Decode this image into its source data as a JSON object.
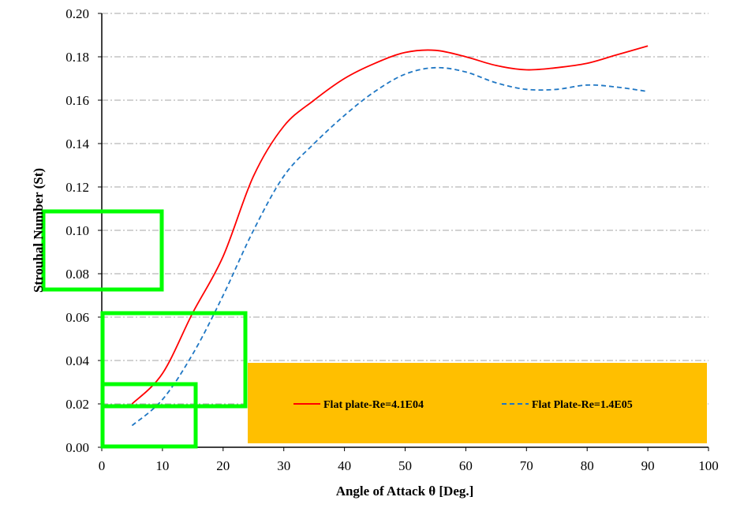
{
  "chart_data": {
    "type": "line",
    "xlabel": "Angle of Attack θ [Deg.]",
    "ylabel": "Strouhal Number  (St)",
    "xlim": [
      0,
      100
    ],
    "ylim": [
      0,
      0.2
    ],
    "xticks": [
      "0",
      "10",
      "20",
      "30",
      "40",
      "50",
      "60",
      "70",
      "80",
      "90",
      "100"
    ],
    "yticks": [
      "0.00",
      "0.02",
      "0.04",
      "0.06",
      "0.08",
      "0.10",
      "0.12",
      "0.14",
      "0.16",
      "0.18",
      "0.20"
    ],
    "grid": "horizontal dash-dot",
    "legend_position": "bottom-right",
    "series": [
      {
        "name": "Flat plate-Re=4.1E04",
        "color": "#ff0000",
        "style": "solid",
        "x": [
          5,
          10,
          15,
          20,
          25,
          30,
          35,
          40,
          45,
          50,
          55,
          60,
          65,
          70,
          75,
          80,
          85,
          90
        ],
        "y": [
          0.02,
          0.034,
          0.062,
          0.088,
          0.125,
          0.148,
          0.16,
          0.17,
          0.177,
          0.182,
          0.183,
          0.18,
          0.176,
          0.174,
          0.175,
          0.177,
          0.181,
          0.185
        ]
      },
      {
        "name": "Flat Plate-Re=1.4E05",
        "color": "#1f77c4",
        "style": "dashed",
        "x": [
          5,
          10,
          15,
          20,
          25,
          30,
          35,
          40,
          45,
          50,
          55,
          60,
          65,
          70,
          75,
          80,
          85,
          90
        ],
        "y": [
          0.01,
          0.022,
          0.043,
          0.07,
          0.1,
          0.125,
          0.14,
          0.153,
          0.164,
          0.172,
          0.175,
          0.173,
          0.168,
          0.165,
          0.165,
          0.167,
          0.166,
          0.164
        ]
      }
    ]
  },
  "overlays": {
    "box_color": "#00ff00",
    "legend_background": "#ffbf00"
  }
}
